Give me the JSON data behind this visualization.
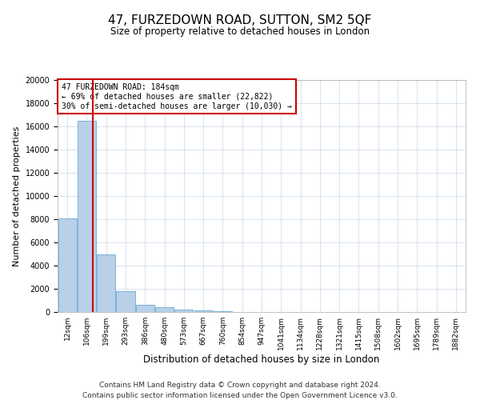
{
  "title": "47, FURZEDOWN ROAD, SUTTON, SM2 5QF",
  "subtitle": "Size of property relative to detached houses in London",
  "xlabel": "Distribution of detached houses by size in London",
  "ylabel": "Number of detached properties",
  "bar_categories": [
    "12sqm",
    "106sqm",
    "199sqm",
    "293sqm",
    "386sqm",
    "480sqm",
    "573sqm",
    "667sqm",
    "760sqm",
    "854sqm",
    "947sqm",
    "1041sqm",
    "1134sqm",
    "1228sqm",
    "1321sqm",
    "1415sqm",
    "1508sqm",
    "1602sqm",
    "1695sqm",
    "1789sqm",
    "1882sqm"
  ],
  "bar_values": [
    8050,
    16500,
    5000,
    1800,
    600,
    380,
    200,
    150,
    90,
    0,
    0,
    0,
    0,
    0,
    0,
    0,
    0,
    0,
    0,
    0,
    0
  ],
  "bar_color": "#b8d0e8",
  "bar_edge_color": "#6aaad4",
  "property_line_color": "#cc0000",
  "annotation_title": "47 FURZEDOWN ROAD: 184sqm",
  "annotation_line1": "← 69% of detached houses are smaller (22,822)",
  "annotation_line2": "30% of semi-detached houses are larger (10,030) →",
  "annotation_box_color": "#cc0000",
  "ylim": [
    0,
    20000
  ],
  "yticks": [
    0,
    2000,
    4000,
    6000,
    8000,
    10000,
    12000,
    14000,
    16000,
    18000,
    20000
  ],
  "footer_line1": "Contains HM Land Registry data © Crown copyright and database right 2024.",
  "footer_line2": "Contains public sector information licensed under the Open Government Licence v3.0.",
  "background_color": "#ffffff",
  "grid_color": "#c8d8e8",
  "fig_width": 6.0,
  "fig_height": 5.0,
  "dpi": 100
}
